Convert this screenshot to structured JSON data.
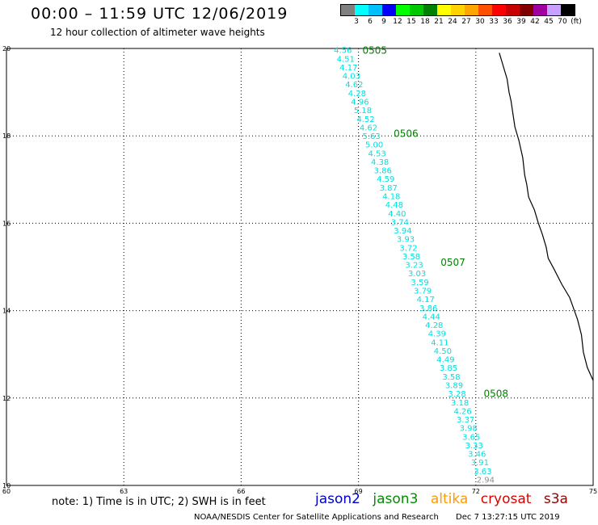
{
  "title": "00:00 – 11:59 UTC 12/06/2019",
  "subtitle": "12 hour collection of altimeter wave heights",
  "colorbar": {
    "labels": [
      "3",
      "6",
      "9",
      "12",
      "15",
      "18",
      "21",
      "24",
      "27",
      "30",
      "33",
      "36",
      "39",
      "42",
      "45",
      "70",
      "(ft)"
    ],
    "colors": [
      "#808080",
      "#00ffff",
      "#00bfff",
      "#0000ff",
      "#00ff00",
      "#00c800",
      "#008000",
      "#ffff00",
      "#ffd200",
      "#ffa500",
      "#ff5000",
      "#ff0000",
      "#c80000",
      "#800000",
      "#a000a0",
      "#c8a0ff",
      "#000000"
    ]
  },
  "axes": {
    "x_ticks": [
      "60",
      "63",
      "66",
      "69",
      "72",
      "75"
    ],
    "y_ticks": [
      "20",
      "18",
      "16",
      "14",
      "12",
      "10"
    ],
    "lon_range": [
      60,
      75
    ],
    "lat_range": [
      10,
      20
    ],
    "grid": "dotted"
  },
  "pass": {
    "color": "#00e0e0",
    "last_color": "#909090",
    "start": {
      "lon": 68.6,
      "lat": 19.95
    },
    "end": {
      "lon": 72.25,
      "lat": 10.12
    },
    "values": [
      "4.56",
      "4.51",
      "4.17",
      "4.03",
      "4.62",
      "4.28",
      "4.96",
      "5.18",
      "4.52",
      "4.62",
      "5.63",
      "5.00",
      "4.53",
      "4.38",
      "3.86",
      "4.59",
      "3.87",
      "4.18",
      "4.48",
      "4.40",
      "3.74",
      "3.94",
      "3.93",
      "3.72",
      "3.58",
      "3.23",
      "3.03",
      "3.59",
      "3.79",
      "4.17",
      "3.86",
      "4.44",
      "4.28",
      "4.39",
      "4.11",
      "4.50",
      "4.49",
      "3.85",
      "3.58",
      "3.89",
      "3.28",
      "3.18",
      "4.26",
      "3.37",
      "3.98",
      "3.65",
      "3.33",
      "3.46",
      "3.91",
      "3.63",
      "2.94"
    ]
  },
  "time_labels": {
    "color": "#008000",
    "items": [
      {
        "text": "0505",
        "lon": 69.1,
        "lat": 19.95
      },
      {
        "text": "0506",
        "lon": 69.9,
        "lat": 18.05
      },
      {
        "text": "0507",
        "lon": 71.1,
        "lat": 15.1
      },
      {
        "text": "0508",
        "lon": 72.2,
        "lat": 12.1
      }
    ]
  },
  "coastline": [
    [
      72.6,
      19.9
    ],
    [
      72.7,
      19.6
    ],
    [
      72.8,
      19.3
    ],
    [
      72.85,
      19.0
    ],
    [
      72.9,
      18.8
    ],
    [
      72.95,
      18.5
    ],
    [
      73.0,
      18.2
    ],
    [
      73.1,
      17.9
    ],
    [
      73.2,
      17.5
    ],
    [
      73.25,
      17.1
    ],
    [
      73.3,
      16.9
    ],
    [
      73.35,
      16.6
    ],
    [
      73.5,
      16.3
    ],
    [
      73.6,
      16.0
    ],
    [
      73.7,
      15.75
    ],
    [
      73.8,
      15.45
    ],
    [
      73.85,
      15.2
    ],
    [
      74.0,
      14.95
    ],
    [
      74.2,
      14.6
    ],
    [
      74.4,
      14.3
    ],
    [
      74.5,
      14.05
    ],
    [
      74.6,
      13.8
    ],
    [
      74.7,
      13.45
    ],
    [
      74.75,
      13.05
    ],
    [
      74.85,
      12.7
    ],
    [
      75.0,
      12.4
    ]
  ],
  "legend": {
    "note": "note: 1) Time is in UTC; 2) SWH is in feet",
    "sats": [
      {
        "name": "jason2",
        "color": "#0000cc"
      },
      {
        "name": "jason3",
        "color": "#009000"
      },
      {
        "name": "altika",
        "color": "#ff9900"
      },
      {
        "name": "cryosat",
        "color": "#dd0000"
      },
      {
        "name": "s3a",
        "color": "#990000"
      }
    ]
  },
  "credit": {
    "org": "NOAA/NESDIS Center for Satellite Applications and Research",
    "timestamp": "Dec  7 13:27:15 UTC 2019"
  }
}
